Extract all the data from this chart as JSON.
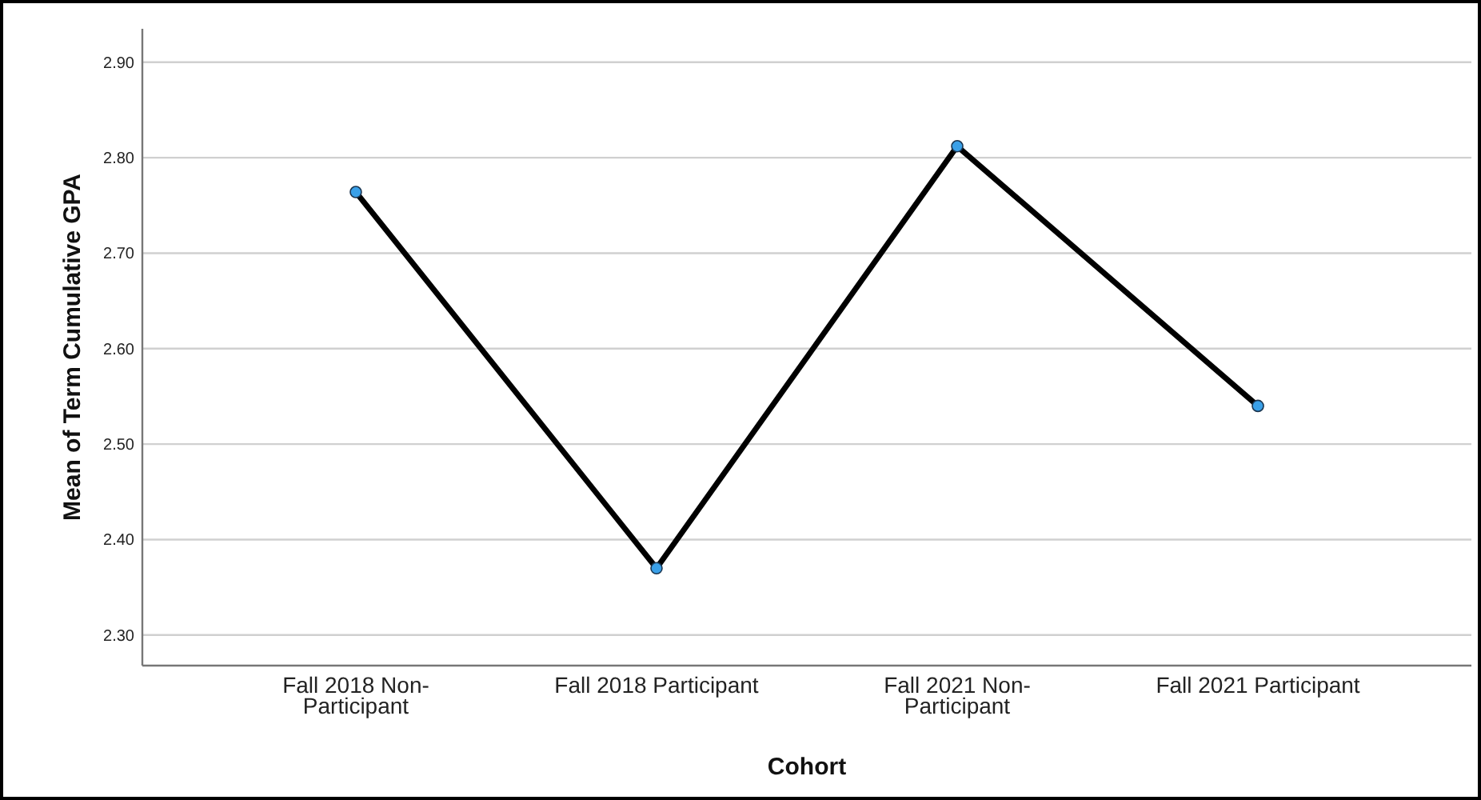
{
  "chart_data": {
    "type": "line",
    "xlabel": "Cohort",
    "ylabel": "Mean of Term Cumulative GPA",
    "categories": [
      "Fall 2018 Non-Participant",
      "Fall 2018 Participant",
      "Fall 2021 Non-Participant",
      "Fall 2021 Participant"
    ],
    "series": [
      {
        "color": "#000000",
        "values": [
          2.764,
          2.37,
          2.812,
          2.54
        ]
      }
    ],
    "ylim": [
      2.268,
      2.935
    ],
    "yticks": [
      {
        "value": 2.3,
        "label": "2.30"
      },
      {
        "value": 2.4,
        "label": "2.40"
      },
      {
        "value": 2.5,
        "label": "2.50"
      },
      {
        "value": 2.6,
        "label": "2.60"
      },
      {
        "value": 2.7,
        "label": "2.70"
      },
      {
        "value": 2.8,
        "label": "2.80"
      },
      {
        "value": 2.9,
        "label": "2.90"
      }
    ],
    "grid": "y",
    "marker": "circle",
    "line_style": "solid"
  }
}
